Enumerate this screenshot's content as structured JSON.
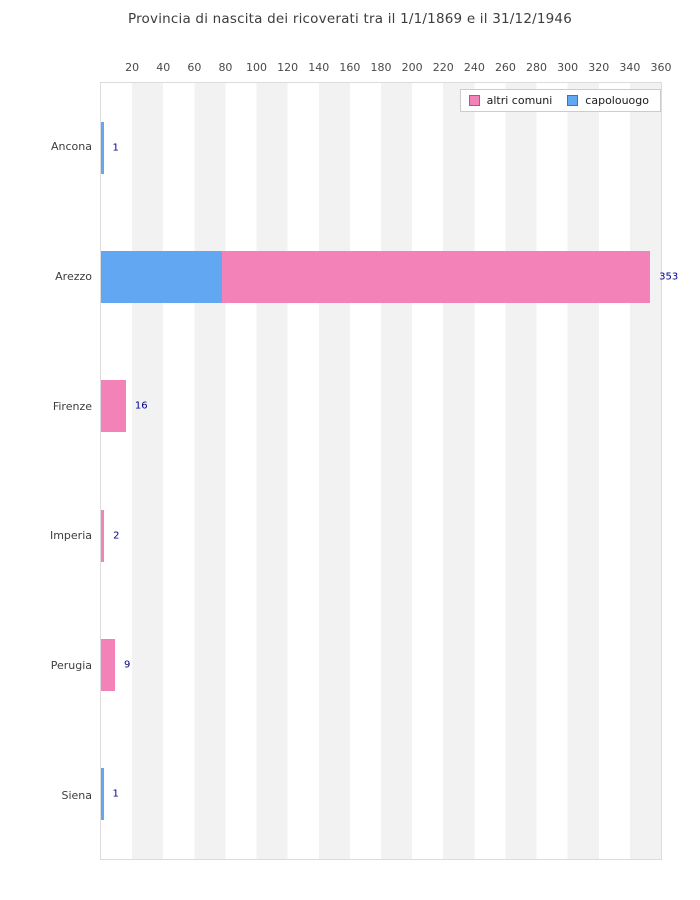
{
  "title": "Provincia di nascita dei ricoverati tra il 1/1/1869 e il 31/12/1946",
  "legend": {
    "items": [
      {
        "label": "altri comuni",
        "color": "#f282b8"
      },
      {
        "label": "capolouogo",
        "color": "#61a7f2"
      }
    ]
  },
  "axis": {
    "ticks": [
      20,
      40,
      60,
      80,
      100,
      120,
      140,
      160,
      180,
      200,
      220,
      240,
      260,
      280,
      300,
      320,
      340,
      360
    ],
    "max": 360
  },
  "colors": {
    "altri_comuni": "#f282b8",
    "capolouogo": "#61a7f2",
    "stripe": "#f2f2f2",
    "plot_border": "#dcdcdc",
    "value_label": "#00008b",
    "text": "#3d3d3d"
  },
  "chart_data": {
    "type": "bar",
    "orientation": "horizontal",
    "stacked": true,
    "title": "Provincia di nascita dei ricoverati tra il 1/1/1869 e il 31/12/1946",
    "categories": [
      "Ancona",
      "Arezzo",
      "Firenze",
      "Imperia",
      "Perugia",
      "Siena"
    ],
    "series": [
      {
        "name": "capolouogo",
        "color": "#61a7f2",
        "values": [
          1,
          78,
          0,
          0,
          0,
          1
        ]
      },
      {
        "name": "altri comuni",
        "color": "#f282b8",
        "values": [
          0,
          275,
          16,
          2,
          9,
          0
        ]
      }
    ],
    "totals": [
      1,
      353,
      16,
      2,
      9,
      1
    ],
    "total_labels": [
      "1",
      "353",
      "16",
      "2",
      "9",
      "1"
    ],
    "xlabel": "",
    "ylabel": "",
    "xlim": [
      0,
      360
    ],
    "x_tick_step": 20,
    "legend_position": "upper-right",
    "grid": "alternating vertical bands every 20 units",
    "stack_order_note": "capolouogo drawn first (left), altri comuni stacked after"
  }
}
